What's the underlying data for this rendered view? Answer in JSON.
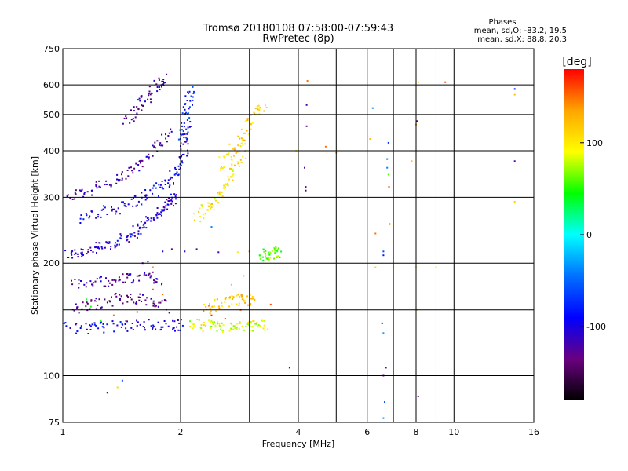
{
  "chart_data": {
    "type": "scatter",
    "title": "Tromsø 20180108 07:58:00-07:59:43",
    "subtitle": "RwPretec (8p)",
    "xlabel": "Frequency [MHz]",
    "ylabel": "Stationary phase Virtual Height [km]",
    "x_scale": "log",
    "y_scale": "log",
    "xlim": [
      1,
      16
    ],
    "ylim": [
      75,
      750
    ],
    "x_ticks": [
      1,
      2,
      4,
      6,
      8,
      10,
      16
    ],
    "x_tick_labels": [
      "1",
      "2",
      "4",
      "6",
      "8",
      "10",
      "16"
    ],
    "x_minor_gridlines": [
      3,
      5,
      7,
      9
    ],
    "y_ticks": [
      75,
      100,
      200,
      300,
      400,
      500,
      600,
      750
    ],
    "y_tick_labels": [
      "75",
      "100",
      "200",
      "300",
      "400",
      "500",
      "600",
      "750"
    ],
    "y_minor_gridlines": [
      150
    ],
    "grid": true,
    "phase_stats": {
      "title": "Phases",
      "line_o": "mean, sd,O: -83.2, 19.5",
      "line_x": "mean, sd,X:  88.8, 20.3"
    },
    "colorbar": {
      "label": "[deg]",
      "range": [
        -180,
        180
      ],
      "ticks": [
        100,
        0,
        -100
      ],
      "tick_labels": [
        "100",
        "0",
        "-100"
      ],
      "colors": [
        "#ff0000",
        "#ffa500",
        "#ffff00",
        "#00ff00",
        "#00ffff",
        "#0070ff",
        "#0000ff",
        "#6a0080",
        "#000000"
      ]
    },
    "traces": [
      {
        "x": [
          1.02,
          1.1,
          1.2,
          1.3,
          1.4,
          1.5,
          1.6,
          1.7,
          1.8,
          1.88,
          1.94
        ],
        "y": [
          210,
          214,
          218,
          223,
          230,
          240,
          252,
          265,
          278,
          292,
          305
        ],
        "phase": -105
      },
      {
        "x": [
          1.1,
          1.25,
          1.4,
          1.55,
          1.7,
          1.85,
          1.95,
          2.02,
          2.06,
          2.1
        ],
        "y": [
          262,
          272,
          282,
          295,
          310,
          330,
          350,
          380,
          420,
          480
        ],
        "phase": -95
      },
      {
        "x": [
          2.02,
          2.06,
          2.1,
          2.13
        ],
        "y": [
          420,
          480,
          540,
          580
        ],
        "phase": -75
      },
      {
        "x": [
          1.02,
          1.15,
          1.3,
          1.45,
          1.6,
          1.75,
          1.9
        ],
        "y": [
          300,
          312,
          325,
          345,
          370,
          410,
          460
        ],
        "phase": -120
      },
      {
        "x": [
          1.45,
          1.55,
          1.65,
          1.75,
          1.85
        ],
        "y": [
          480,
          520,
          560,
          600,
          620
        ],
        "phase": -125
      },
      {
        "x": [
          1.0,
          1.15,
          1.3,
          1.5,
          1.7,
          1.9,
          2.0
        ],
        "y": [
          135,
          134,
          135,
          136,
          137,
          136,
          137
        ],
        "phase": -95
      },
      {
        "x": [
          1.05,
          1.2,
          1.35,
          1.5,
          1.7,
          1.85
        ],
        "y": [
          150,
          155,
          160,
          162,
          158,
          152
        ],
        "phase": -130
      },
      {
        "x": [
          1.05,
          1.2,
          1.35,
          1.5,
          1.65,
          1.8
        ],
        "y": [
          175,
          178,
          180,
          182,
          185,
          180
        ],
        "phase": -120
      },
      {
        "x": [
          2.2,
          2.35,
          2.5,
          2.65,
          2.8,
          2.95
        ],
        "y": [
          265,
          280,
          300,
          330,
          370,
          420
        ],
        "phase": 100
      },
      {
        "x": [
          2.5,
          2.7,
          2.9,
          3.1,
          3.25
        ],
        "y": [
          360,
          400,
          440,
          490,
          540
        ],
        "phase": 110
      },
      {
        "x": [
          2.1,
          2.3,
          2.5,
          2.7,
          2.9,
          3.1,
          3.3
        ],
        "y": [
          138,
          136,
          135,
          134,
          135,
          136,
          137
        ],
        "phase": 85
      },
      {
        "x": [
          2.3,
          2.5,
          2.7,
          2.9,
          3.1
        ],
        "y": [
          150,
          155,
          158,
          160,
          158
        ],
        "phase": 120
      },
      {
        "x": [
          3.2,
          3.35,
          3.5,
          3.6
        ],
        "y": [
          210,
          212,
          213,
          214
        ],
        "phase": 60
      }
    ],
    "points": [
      {
        "x": 1.3,
        "y": 90,
        "phase": -130
      },
      {
        "x": 1.42,
        "y": 97,
        "phase": -60
      },
      {
        "x": 1.38,
        "y": 93,
        "phase": 110
      },
      {
        "x": 4.22,
        "y": 615,
        "phase": 150
      },
      {
        "x": 4.2,
        "y": 530,
        "phase": -120
      },
      {
        "x": 4.2,
        "y": 465,
        "phase": -130
      },
      {
        "x": 4.15,
        "y": 360,
        "phase": -120
      },
      {
        "x": 4.18,
        "y": 320,
        "phase": -130
      },
      {
        "x": 4.18,
        "y": 313,
        "phase": -140
      },
      {
        "x": 4.7,
        "y": 410,
        "phase": 150
      },
      {
        "x": 5.0,
        "y": 395,
        "phase": 140
      },
      {
        "x": 3.8,
        "y": 105,
        "phase": -120
      },
      {
        "x": 3.95,
        "y": 400,
        "phase": 100
      },
      {
        "x": 6.1,
        "y": 430,
        "phase": 120
      },
      {
        "x": 6.2,
        "y": 520,
        "phase": -40
      },
      {
        "x": 6.3,
        "y": 240,
        "phase": 150
      },
      {
        "x": 6.3,
        "y": 195,
        "phase": 110
      },
      {
        "x": 6.6,
        "y": 215,
        "phase": -60
      },
      {
        "x": 6.6,
        "y": 210,
        "phase": -80
      },
      {
        "x": 6.55,
        "y": 138,
        "phase": -100
      },
      {
        "x": 6.6,
        "y": 130,
        "phase": -30
      },
      {
        "x": 6.6,
        "y": 100,
        "phase": -130
      },
      {
        "x": 6.65,
        "y": 85,
        "phase": -60
      },
      {
        "x": 6.6,
        "y": 77,
        "phase": -40
      },
      {
        "x": 6.7,
        "y": 105,
        "phase": -120
      },
      {
        "x": 6.8,
        "y": 420,
        "phase": -70
      },
      {
        "x": 6.75,
        "y": 360,
        "phase": -40
      },
      {
        "x": 6.8,
        "y": 345,
        "phase": 60
      },
      {
        "x": 6.82,
        "y": 320,
        "phase": 160
      },
      {
        "x": 6.75,
        "y": 380,
        "phase": -50
      },
      {
        "x": 6.85,
        "y": 255,
        "phase": 120
      },
      {
        "x": 7.0,
        "y": 195,
        "phase": 100
      },
      {
        "x": 7.8,
        "y": 375,
        "phase": 120
      },
      {
        "x": 8.0,
        "y": 470,
        "phase": 140
      },
      {
        "x": 8.05,
        "y": 480,
        "phase": -130
      },
      {
        "x": 8.1,
        "y": 610,
        "phase": 110
      },
      {
        "x": 8.0,
        "y": 195,
        "phase": 100
      },
      {
        "x": 8.05,
        "y": 150,
        "phase": 100
      },
      {
        "x": 8.1,
        "y": 88,
        "phase": -130
      },
      {
        "x": 9.0,
        "y": 195,
        "phase": 100
      },
      {
        "x": 9.5,
        "y": 610,
        "phase": 160
      },
      {
        "x": 14.3,
        "y": 585,
        "phase": -90
      },
      {
        "x": 14.3,
        "y": 565,
        "phase": 120
      },
      {
        "x": 14.3,
        "y": 375,
        "phase": -120
      },
      {
        "x": 14.3,
        "y": 292,
        "phase": 110
      },
      {
        "x": 1.6,
        "y": 200,
        "phase": -120
      },
      {
        "x": 1.65,
        "y": 202,
        "phase": -130
      },
      {
        "x": 1.7,
        "y": 195,
        "phase": 140
      },
      {
        "x": 1.8,
        "y": 215,
        "phase": -100
      },
      {
        "x": 1.9,
        "y": 218,
        "phase": -130
      },
      {
        "x": 2.05,
        "y": 215,
        "phase": -110
      },
      {
        "x": 2.2,
        "y": 218,
        "phase": -120
      },
      {
        "x": 2.5,
        "y": 214,
        "phase": -120
      },
      {
        "x": 2.8,
        "y": 214,
        "phase": 100
      },
      {
        "x": 3.0,
        "y": 215,
        "phase": 150
      },
      {
        "x": 2.4,
        "y": 250,
        "phase": -40
      },
      {
        "x": 1.25,
        "y": 140,
        "phase": 50
      },
      {
        "x": 1.15,
        "y": 160,
        "phase": 40
      },
      {
        "x": 1.18,
        "y": 153,
        "phase": 50
      },
      {
        "x": 1.22,
        "y": 158,
        "phase": 60
      },
      {
        "x": 1.35,
        "y": 145,
        "phase": 150
      },
      {
        "x": 1.45,
        "y": 140,
        "phase": 160
      },
      {
        "x": 1.55,
        "y": 148,
        "phase": 170
      },
      {
        "x": 1.7,
        "y": 170,
        "phase": 160
      },
      {
        "x": 1.8,
        "y": 165,
        "phase": 150
      },
      {
        "x": 2.4,
        "y": 145,
        "phase": 170
      },
      {
        "x": 2.6,
        "y": 142,
        "phase": 160
      },
      {
        "x": 2.85,
        "y": 150,
        "phase": 165
      },
      {
        "x": 3.4,
        "y": 155,
        "phase": 160
      },
      {
        "x": 2.7,
        "y": 175,
        "phase": 120
      },
      {
        "x": 2.9,
        "y": 185,
        "phase": 125
      }
    ]
  }
}
